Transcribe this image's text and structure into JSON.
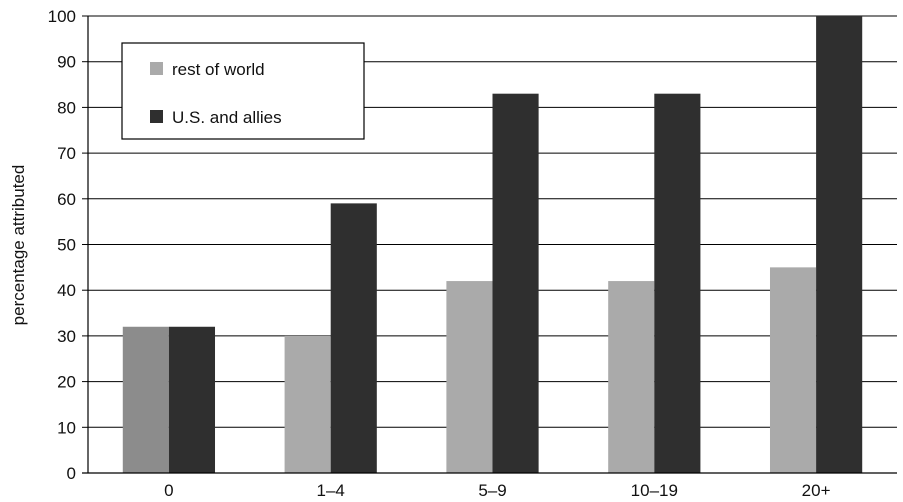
{
  "chart_data": {
    "type": "bar",
    "xlabel": "",
    "ylabel": "percentage attributed",
    "categories": [
      "0",
      "1–4",
      "5–9",
      "10–19",
      "20+"
    ],
    "ylim": [
      0,
      100
    ],
    "yticks": [
      0,
      10,
      20,
      30,
      40,
      50,
      60,
      70,
      80,
      90,
      100
    ],
    "grid": true,
    "legend_position": "top-left",
    "series": [
      {
        "name": "rest of world",
        "color": "#aaaaaa",
        "values": [
          32,
          30,
          42,
          42,
          45
        ]
      },
      {
        "name": "U.S. and allies",
        "color": "#2f2f2f",
        "values": [
          32,
          59,
          83,
          83,
          100
        ]
      }
    ],
    "colors": {
      "first_category_rest_of_world": "#8c8c8c"
    }
  }
}
